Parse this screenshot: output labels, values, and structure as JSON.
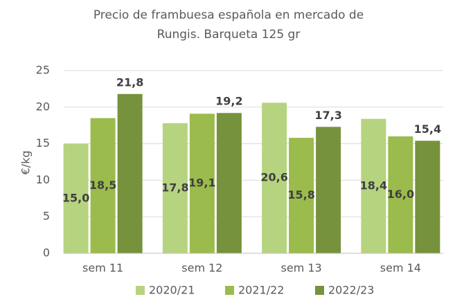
{
  "chart_data": {
    "type": "bar",
    "title": [
      "Precio de frambuesa española en mercado de",
      "Rungis. Barqueta 125 gr"
    ],
    "ylabel": "€/kg",
    "categories": [
      "sem 11",
      "sem 12",
      "sem 13",
      "sem 14"
    ],
    "series": [
      {
        "name": "2020/21",
        "color": "#b6d37f",
        "values": [
          15.0,
          17.8,
          20.6,
          18.4
        ],
        "value_labels": [
          "15,0",
          "17,8",
          "20,6",
          "18,4"
        ]
      },
      {
        "name": "2021/22",
        "color": "#9bbb4c",
        "values": [
          18.5,
          19.1,
          15.8,
          16.0
        ],
        "value_labels": [
          "18,5",
          "19,1",
          "15,8",
          "16,0"
        ]
      },
      {
        "name": "2022/23",
        "color": "#76923c",
        "values": [
          21.8,
          19.2,
          17.3,
          15.4
        ],
        "value_labels": [
          "21,8",
          "19,2",
          "17,3",
          "15,4"
        ]
      }
    ],
    "ylim": [
      0,
      25
    ],
    "yticks": [
      0,
      5,
      10,
      15,
      20,
      25
    ],
    "grid": true,
    "legend": "bottom"
  }
}
